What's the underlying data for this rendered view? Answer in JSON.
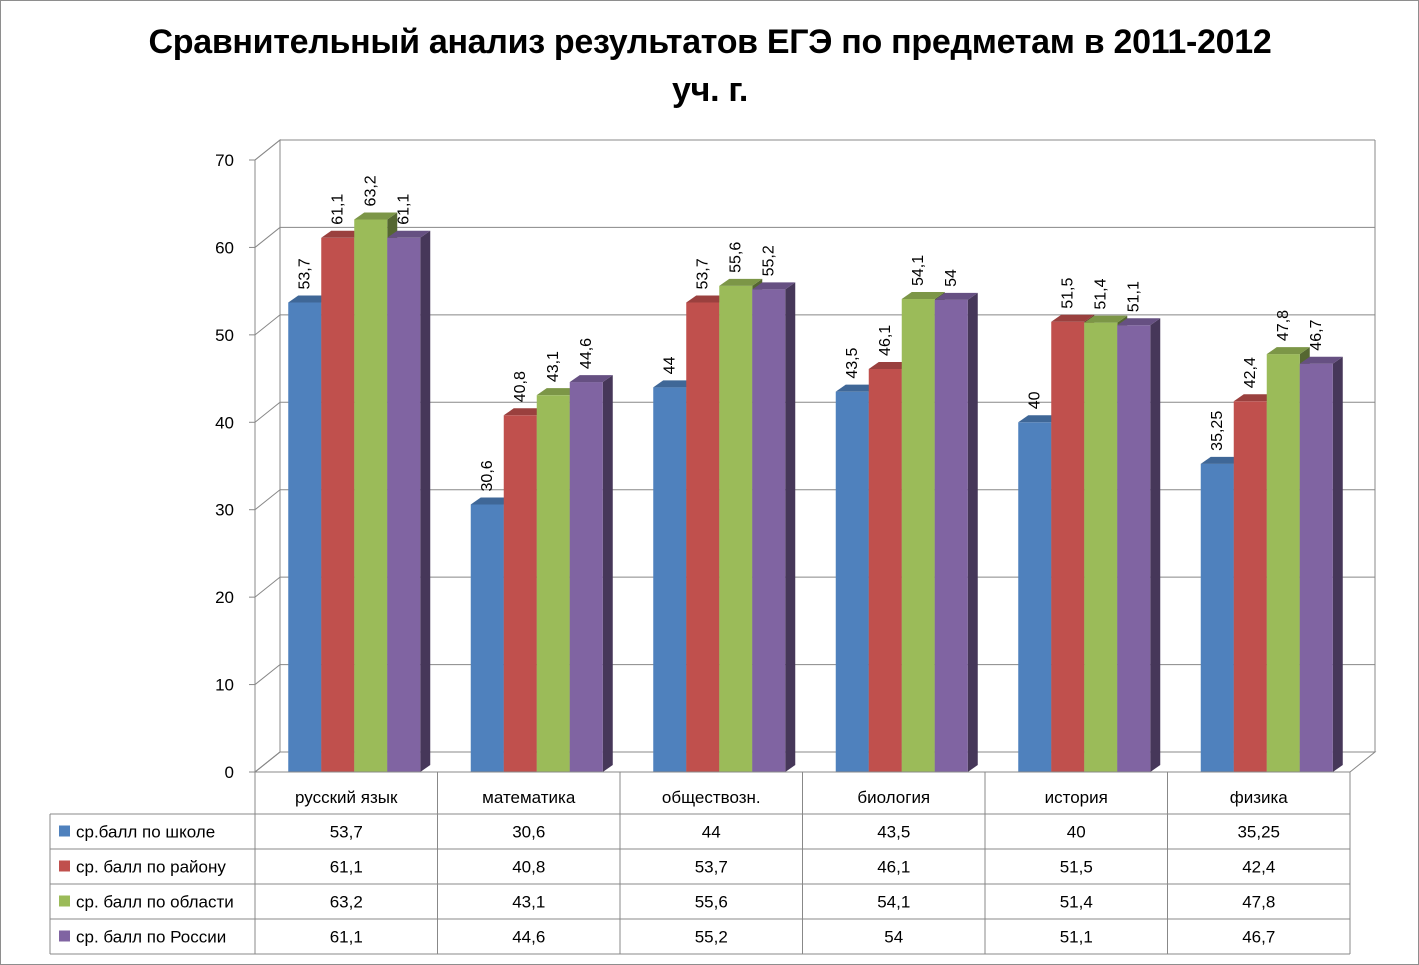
{
  "chart_data": {
    "type": "bar",
    "title": "Сравнительный анализ результатов ЕГЭ по предметам в 2011-2012 уч. г.",
    "title_lines": [
      "Сравнительный анализ результатов ЕГЭ по предметам в 2011-2012",
      "уч. г."
    ],
    "categories": [
      "русский язык",
      "математика",
      "обществозн.",
      "биология",
      "история",
      "физика"
    ],
    "series": [
      {
        "name": "ср.балл по школе",
        "color": "#4f81bd",
        "values": [
          53.7,
          30.6,
          44,
          43.5,
          40,
          35.25
        ],
        "labels": [
          "53,7",
          "30,6",
          "44",
          "43,5",
          "40",
          "35,25"
        ]
      },
      {
        "name": "ср. балл по району",
        "color": "#c0504d",
        "values": [
          61.1,
          40.8,
          53.7,
          46.1,
          51.5,
          42.4
        ],
        "labels": [
          "61,1",
          "40,8",
          "53,7",
          "46,1",
          "51,5",
          "42,4"
        ]
      },
      {
        "name": "ср. балл по области",
        "color": "#9bbb59",
        "values": [
          63.2,
          43.1,
          55.6,
          54.1,
          51.4,
          47.8
        ],
        "labels": [
          "63,2",
          "43,1",
          "55,6",
          "54,1",
          "51,4",
          "47,8"
        ]
      },
      {
        "name": "ср. балл по России",
        "color": "#8064a2",
        "values": [
          61.1,
          44.6,
          55.2,
          54,
          51.1,
          46.7
        ],
        "labels": [
          "61,1",
          "44,6",
          "55,2",
          "54",
          "51,1",
          "46,7"
        ]
      }
    ],
    "ylim": [
      0,
      70
    ],
    "yticks": [
      0,
      10,
      20,
      30,
      40,
      50,
      60,
      70
    ],
    "grid": true,
    "legend": "data-table"
  }
}
